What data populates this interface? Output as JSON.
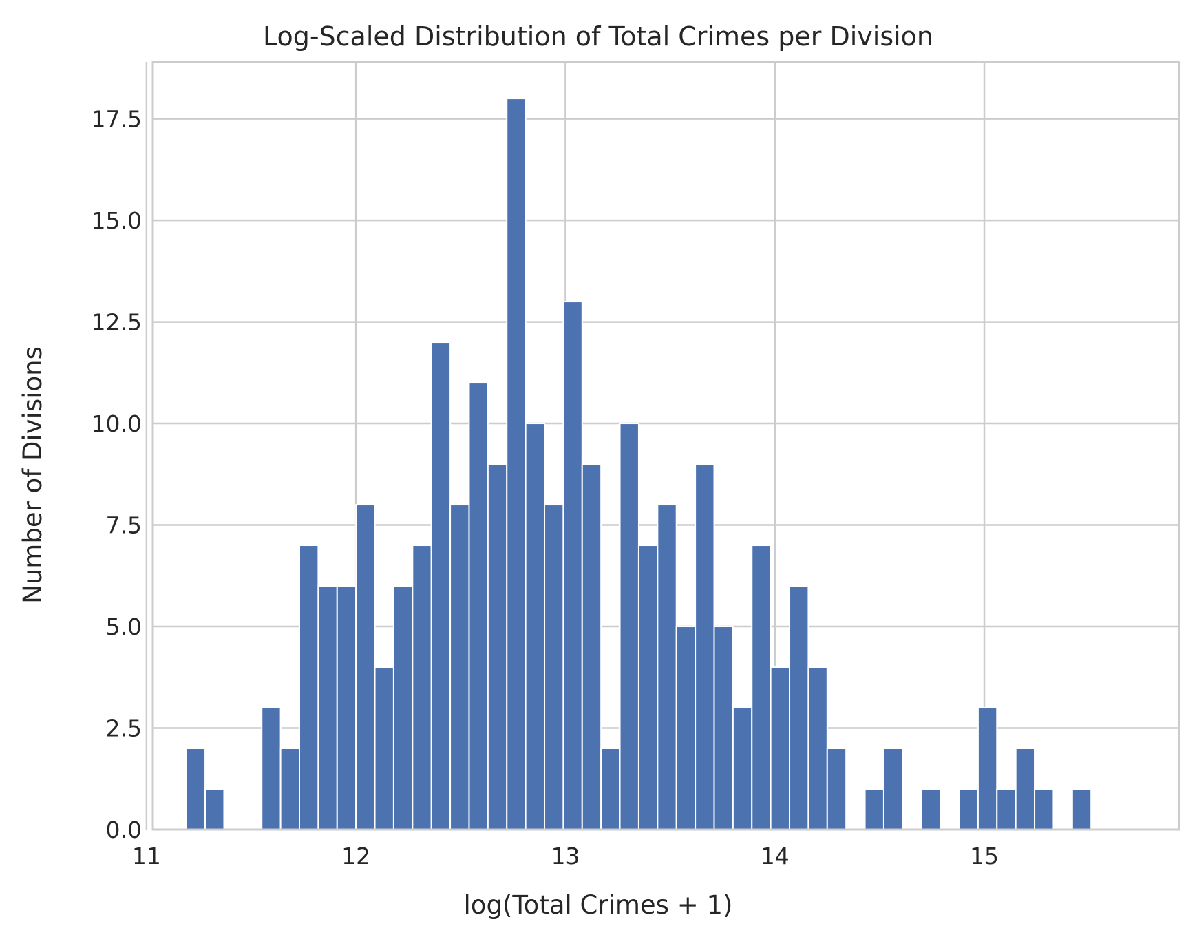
{
  "chart_data": {
    "type": "bar",
    "title": "Log-Scaled Distribution of Total Crimes per Division",
    "xlabel": "log(Total Crimes + 1)",
    "ylabel": "Number of Divisions",
    "xlim": [
      11.03,
      15.93
    ],
    "ylim": [
      0,
      18.9
    ],
    "x_ticks": [
      11,
      12,
      13,
      14,
      15
    ],
    "x_tick_labels": [
      "11",
      "12",
      "13",
      "14",
      "15"
    ],
    "y_ticks": [
      0,
      2.5,
      5,
      7.5,
      10,
      12.5,
      15,
      17.5
    ],
    "y_tick_labels": [
      "0.0",
      "2.5",
      "5.0",
      "7.5",
      "10.0",
      "12.5",
      "15.0",
      "17.5"
    ],
    "grid": true,
    "bar_color": "#4c72b0",
    "bin_start": 11.19,
    "bin_width": 0.09,
    "values": [
      2,
      1,
      0,
      0,
      3,
      2,
      7,
      6,
      6,
      8,
      4,
      6,
      7,
      12,
      8,
      11,
      9,
      18,
      10,
      8,
      13,
      9,
      2,
      10,
      7,
      8,
      5,
      9,
      5,
      3,
      7,
      4,
      6,
      4,
      2,
      0,
      1,
      2,
      0,
      1,
      0,
      1,
      3,
      1,
      2,
      1,
      0,
      1
    ]
  }
}
